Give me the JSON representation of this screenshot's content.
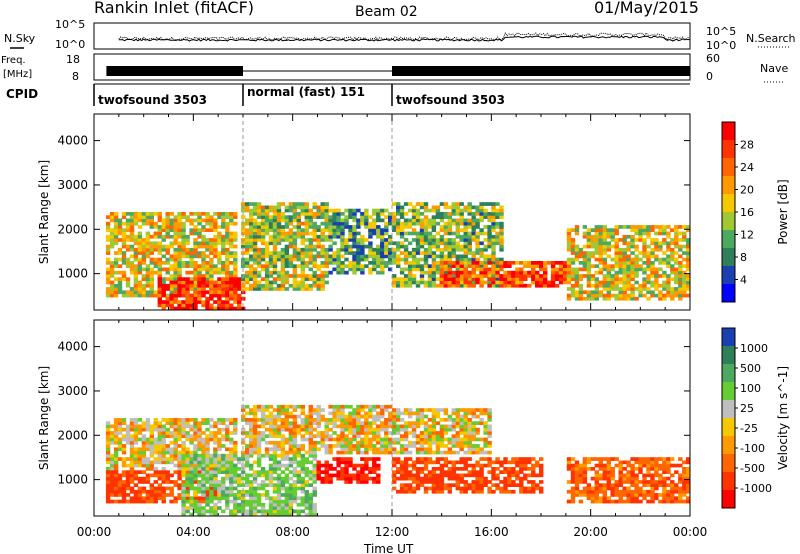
{
  "header": {
    "station": "Rankin Inlet (fitACF)",
    "beam": "Beam 02",
    "date": "01/May/2015"
  },
  "top_panel": {
    "left_label": "N.Sky",
    "right_label": "N.Search",
    "left_ticks": [
      "10^5",
      "10^0"
    ],
    "right_ticks": [
      "10^5",
      "10^0"
    ]
  },
  "freq_panel": {
    "left_label_1": "Freq.",
    "left_label_2": "[MHz]",
    "right_label": "Nave",
    "left_ticks": [
      "18",
      "8"
    ],
    "right_ticks": [
      "60",
      "0"
    ]
  },
  "cpid": {
    "label": "CPID",
    "segments": [
      {
        "label": "twofsound 3503",
        "start_hour": 0,
        "end_hour": 6
      },
      {
        "label": "normal (fast) 151",
        "start_hour": 6,
        "end_hour": 12
      },
      {
        "label": "twofsound 3503",
        "start_hour": 12,
        "end_hour": 24
      }
    ]
  },
  "chart_data": [
    {
      "type": "heatmap",
      "title": "",
      "ylabel": "Slant Range [km]",
      "xlabel": "",
      "ylim": [
        180,
        4600
      ],
      "yticks": [
        "1000",
        "2000",
        "3000",
        "4000"
      ],
      "colorbar": {
        "label": "Power [dB]",
        "ticks": [
          "28",
          "24",
          "20",
          "16",
          "12",
          "8",
          "4"
        ],
        "colors": [
          "#ff0000",
          "#ff3300",
          "#ff6600",
          "#ff9900",
          "#f5c800",
          "#a0c832",
          "#4da860",
          "#2f7f5a",
          "#1a3fb0",
          "#0000ff"
        ]
      },
      "blobs": [
        {
          "x0": 0.5,
          "x1": 5.8,
          "y0": 500,
          "y1": 2400,
          "field": "power",
          "level": 18
        },
        {
          "x0": 2.5,
          "x1": 6.0,
          "y0": 200,
          "y1": 900,
          "field": "power",
          "level": 28
        },
        {
          "x0": 6.0,
          "x1": 9.5,
          "y0": 600,
          "y1": 2600,
          "field": "power",
          "level": 16
        },
        {
          "x0": 9.5,
          "x1": 12.0,
          "y0": 1000,
          "y1": 2500,
          "field": "power",
          "level": 12
        },
        {
          "x0": 12.0,
          "x1": 16.5,
          "y0": 700,
          "y1": 2600,
          "field": "power",
          "level": 14
        },
        {
          "x0": 14.0,
          "x1": 19.0,
          "y0": 700,
          "y1": 1300,
          "field": "power",
          "level": 26
        },
        {
          "x0": 19.0,
          "x1": 24.0,
          "y0": 400,
          "y1": 2100,
          "field": "power",
          "level": 18
        }
      ]
    },
    {
      "type": "heatmap",
      "title": "",
      "ylabel": "Slant Range [km]",
      "xlabel": "Time UT",
      "xticks": [
        "00:00",
        "04:00",
        "08:00",
        "12:00",
        "16:00",
        "20:00",
        "00:00"
      ],
      "ylim": [
        180,
        4600
      ],
      "yticks": [
        "1000",
        "2000",
        "3000",
        "4000"
      ],
      "colorbar": {
        "label": "Velocity [m s^-1]",
        "ticks": [
          "1000",
          "500",
          "100",
          "25",
          "-25",
          "-100",
          "-500",
          "-1000"
        ],
        "colors": [
          "#1a3fb0",
          "#2f7f5a",
          "#4da860",
          "#66cc33",
          "#bfbfbf",
          "#f5c800",
          "#ff9900",
          "#ff6600",
          "#ff3300",
          "#ff0000"
        ]
      },
      "blobs": [
        {
          "x0": 0.5,
          "x1": 5.8,
          "y0": 1200,
          "y1": 2400,
          "field": "velocity",
          "level": 0
        },
        {
          "x0": 0.5,
          "x1": 5.0,
          "y0": 500,
          "y1": 1200,
          "field": "velocity",
          "level": -300
        },
        {
          "x0": 3.5,
          "x1": 9.0,
          "y0": 200,
          "y1": 1600,
          "field": "velocity",
          "level": 150
        },
        {
          "x0": 6.0,
          "x1": 12.0,
          "y0": 1600,
          "y1": 2700,
          "field": "velocity",
          "level": 0
        },
        {
          "x0": 9.0,
          "x1": 11.5,
          "y0": 900,
          "y1": 1500,
          "field": "velocity",
          "level": -500
        },
        {
          "x0": 12.0,
          "x1": 18.0,
          "y0": 700,
          "y1": 1500,
          "field": "velocity",
          "level": -300
        },
        {
          "x0": 12.0,
          "x1": 16.0,
          "y0": 1600,
          "y1": 2600,
          "field": "velocity",
          "level": 0
        },
        {
          "x0": 19.0,
          "x1": 24.0,
          "y0": 500,
          "y1": 1500,
          "field": "velocity",
          "level": -200
        }
      ]
    }
  ]
}
